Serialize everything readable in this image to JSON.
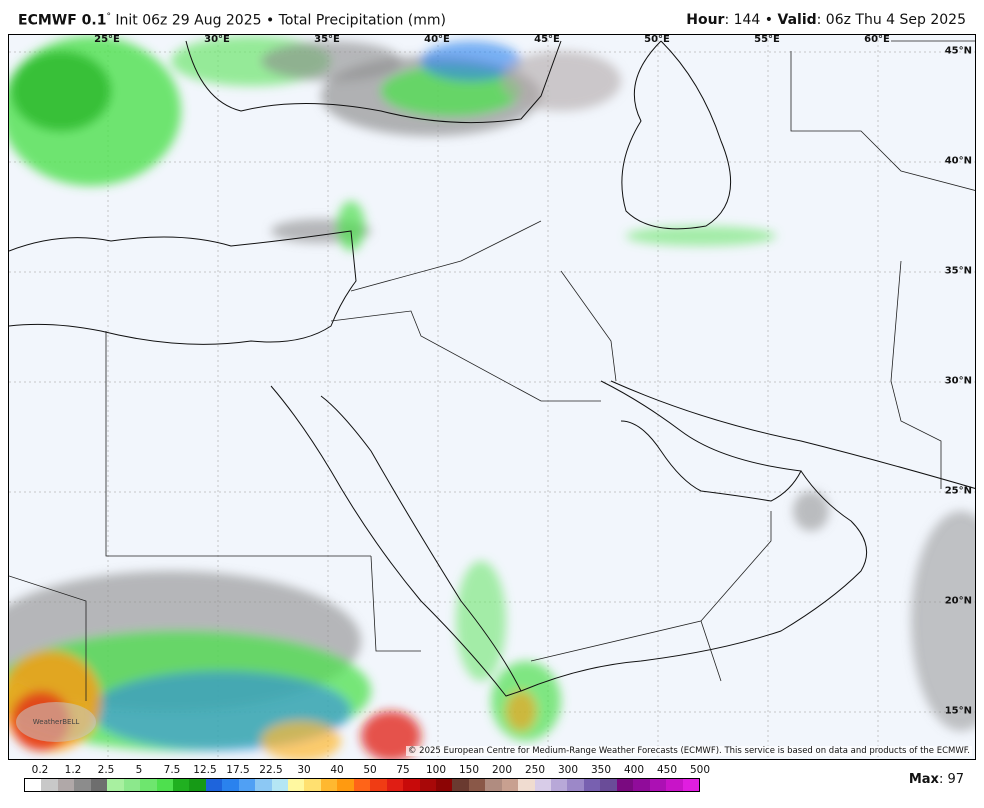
{
  "header": {
    "model": "ECMWF 0.1",
    "degree": "°",
    "init": " Init 06z 29 Aug 2025 • Total Precipitation (mm)",
    "hour_label": "Hour",
    "hour_value": ": 144 • ",
    "valid_label": "Valid",
    "valid_value": ": 06z Thu 4 Sep 2025"
  },
  "map": {
    "longitude_labels": [
      "25°E",
      "30°E",
      "35°E",
      "40°E",
      "45°E",
      "50°E",
      "55°E",
      "60°E"
    ],
    "latitude_labels": [
      "45°N",
      "40°N",
      "35°N",
      "30°N",
      "25°N",
      "20°N",
      "15°N"
    ],
    "credit": "© 2025 European Centre for Medium-Range Weather Forecasts (ECMWF). This service is based on data and products of the ECMWF.",
    "logo_text": "WeatherBELL",
    "background_color": "#f2f6fc"
  },
  "colorbar": {
    "labels": [
      "0.2",
      "1.2",
      "2.5",
      "5",
      "7.5",
      "12.5",
      "17.5",
      "22.5",
      "30",
      "40",
      "50",
      "75",
      "100",
      "150",
      "200",
      "250",
      "300",
      "350",
      "400",
      "450",
      "500"
    ],
    "colors": [
      "#ffffff",
      "#c8c8c8",
      "#b0a8a8",
      "#8c8c8c",
      "#6e6e6e",
      "#a8f0a0",
      "#8ce88c",
      "#6ee66e",
      "#4ee04e",
      "#20b020",
      "#169a16",
      "#1e64dc",
      "#2a82ee",
      "#50a0f4",
      "#8cc8f4",
      "#b4e6f4",
      "#fff8a0",
      "#ffe070",
      "#ffb830",
      "#ff9a10",
      "#ff6418",
      "#f03c14",
      "#e01e14",
      "#c80a0a",
      "#a80808",
      "#8c0404",
      "#6a3a30",
      "#8a5848",
      "#b08c80",
      "#c8a090",
      "#f0dcd0",
      "#d8cce8",
      "#b8a8d8",
      "#9c88c8",
      "#7860b0",
      "#6a4c98",
      "#7a0a80",
      "#900c9a",
      "#ac10b4",
      "#c814c8",
      "#e01ee0"
    ],
    "max_label": "Max",
    "max_value": ": 97"
  }
}
